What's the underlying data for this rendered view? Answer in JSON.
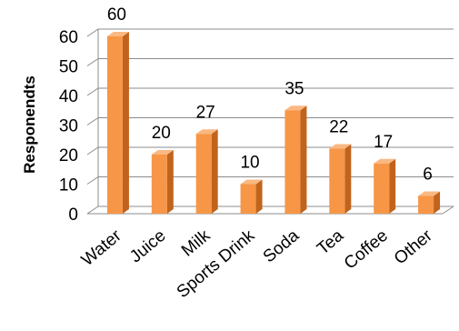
{
  "chart_data": {
    "type": "bar",
    "style": "3d-column",
    "categories": [
      "Water",
      "Juice",
      "Milk",
      "Sports Drink",
      "Soda",
      "Tea",
      "Coffee",
      "Other"
    ],
    "values": [
      60,
      20,
      27,
      10,
      35,
      22,
      17,
      6
    ],
    "series": [
      {
        "values": [
          60,
          20,
          27,
          10,
          35,
          22,
          17,
          6
        ]
      }
    ],
    "ylabel": "Responendts",
    "xlabel": "",
    "ylim": [
      0,
      60
    ],
    "yticks": [
      0,
      10,
      20,
      30,
      40,
      50,
      60
    ],
    "grid": true,
    "data_labels": true,
    "legend": "none",
    "colors": {
      "bar_front": "#f79646",
      "bar_side": "#c0641d",
      "bar_top": "#fab882",
      "gridline": "#8c8c8c",
      "wall": "#ffffff"
    }
  }
}
